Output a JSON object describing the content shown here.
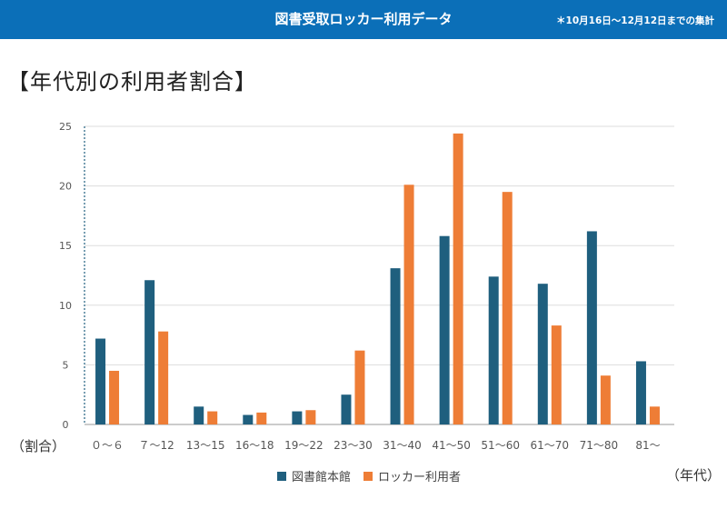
{
  "header": {
    "title": "図書受取ロッカー利用データ",
    "note": "＊10月16日〜12月12日までの集計"
  },
  "section_title": "【年代別の利用者割合】",
  "colors": {
    "header_bg": "#0b6fb8",
    "series_library": "#1f5f7e",
    "series_locker": "#ee7d36"
  },
  "chart_data": {
    "type": "bar",
    "title": "",
    "ylabel": "（割合）",
    "xlabel": "（年代）",
    "ylim": [
      0,
      25
    ],
    "yticks": [
      0,
      5,
      10,
      15,
      20,
      25
    ],
    "grid": true,
    "legend_position": "bottom",
    "categories": [
      "０～６",
      "７～12",
      "13～15",
      "16～18",
      "19～22",
      "23～30",
      "31～40",
      "41～50",
      "51～60",
      "61～70",
      "71～80",
      "81～"
    ],
    "series": [
      {
        "name": "図書館本館",
        "color": "#1f5f7e",
        "values": [
          7.2,
          12.1,
          1.5,
          0.8,
          1.1,
          2.5,
          13.1,
          15.8,
          12.4,
          11.8,
          16.2,
          5.3
        ]
      },
      {
        "name": "ロッカー利用者",
        "color": "#ee7d36",
        "values": [
          4.5,
          7.8,
          1.1,
          1.0,
          1.2,
          6.2,
          20.1,
          24.4,
          19.5,
          8.3,
          4.1,
          1.5
        ]
      }
    ]
  }
}
